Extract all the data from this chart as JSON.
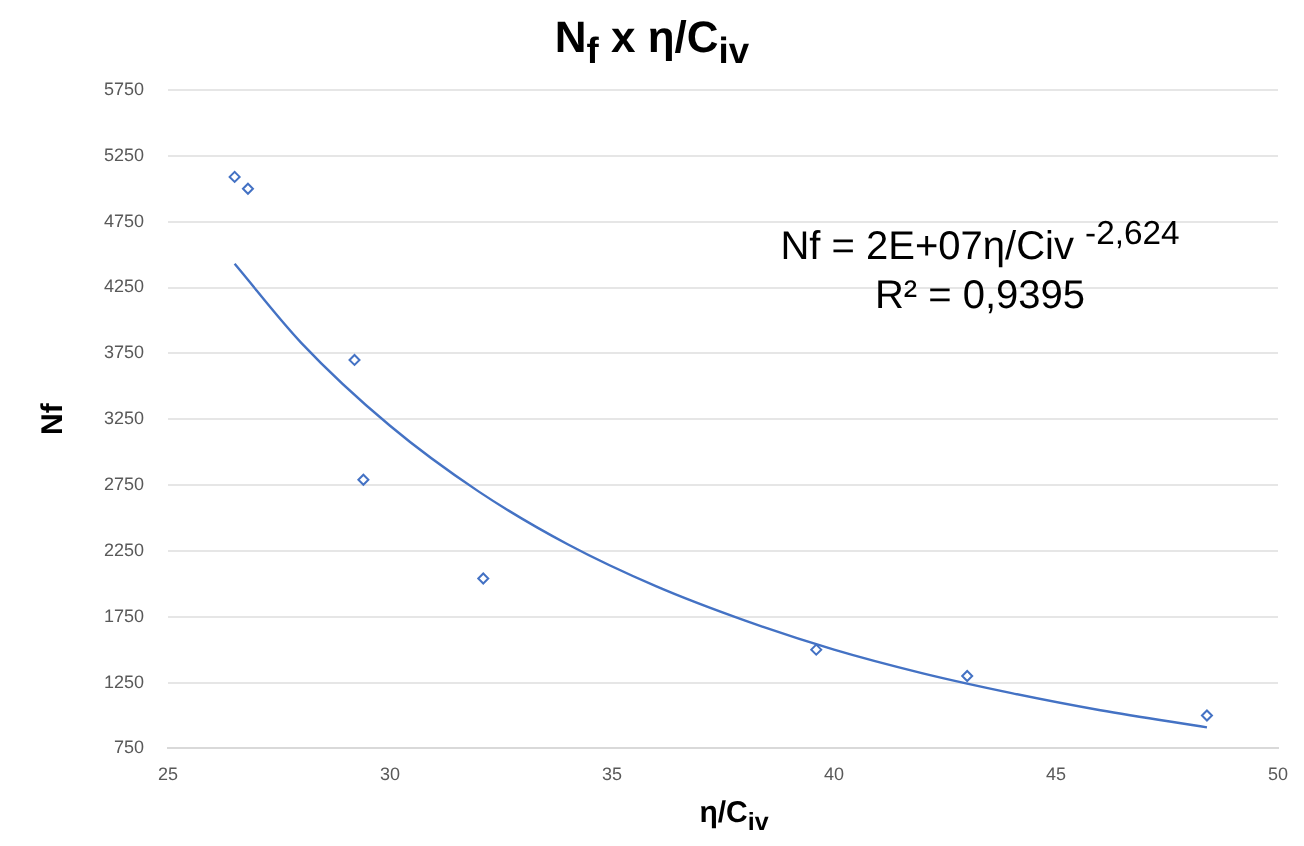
{
  "chart_data": {
    "type": "scatter",
    "title": "N$_{f}$ x η/C$_{iv}$",
    "xlabel": "η/C$_{iv}$",
    "ylabel": "Nf",
    "xlim": [
      25,
      50
    ],
    "xticks": [
      25,
      30,
      35,
      40,
      45,
      50
    ],
    "ylim": [
      750,
      5750
    ],
    "yticks": [
      750,
      1250,
      1750,
      2250,
      2750,
      3250,
      3750,
      4250,
      4750,
      5250,
      5750
    ],
    "grid": "y",
    "marker": "diamond",
    "annotations": [
      "Nf = 2E+07η/Civ $^{-2,624}$",
      "R² = 0,9395"
    ],
    "series": [
      {
        "type": "scatter",
        "color": "#4472c4",
        "x": [
          26.5,
          26.8,
          29.2,
          29.4,
          32.1,
          39.6,
          43,
          48.4
        ],
        "values": [
          5090,
          5000,
          3700,
          2790,
          2040,
          1500,
          1300,
          1000
        ]
      },
      {
        "type": "line",
        "color": "#4472c4",
        "marker": "none",
        "x": [
          26.5,
          28,
          30,
          32,
          34,
          36,
          38,
          40,
          42,
          44,
          46,
          48.4
        ],
        "values": [
          4430,
          3830,
          3200,
          2700,
          2300,
          1980,
          1720,
          1500,
          1320,
          1170,
          1040,
          910
        ]
      }
    ]
  }
}
